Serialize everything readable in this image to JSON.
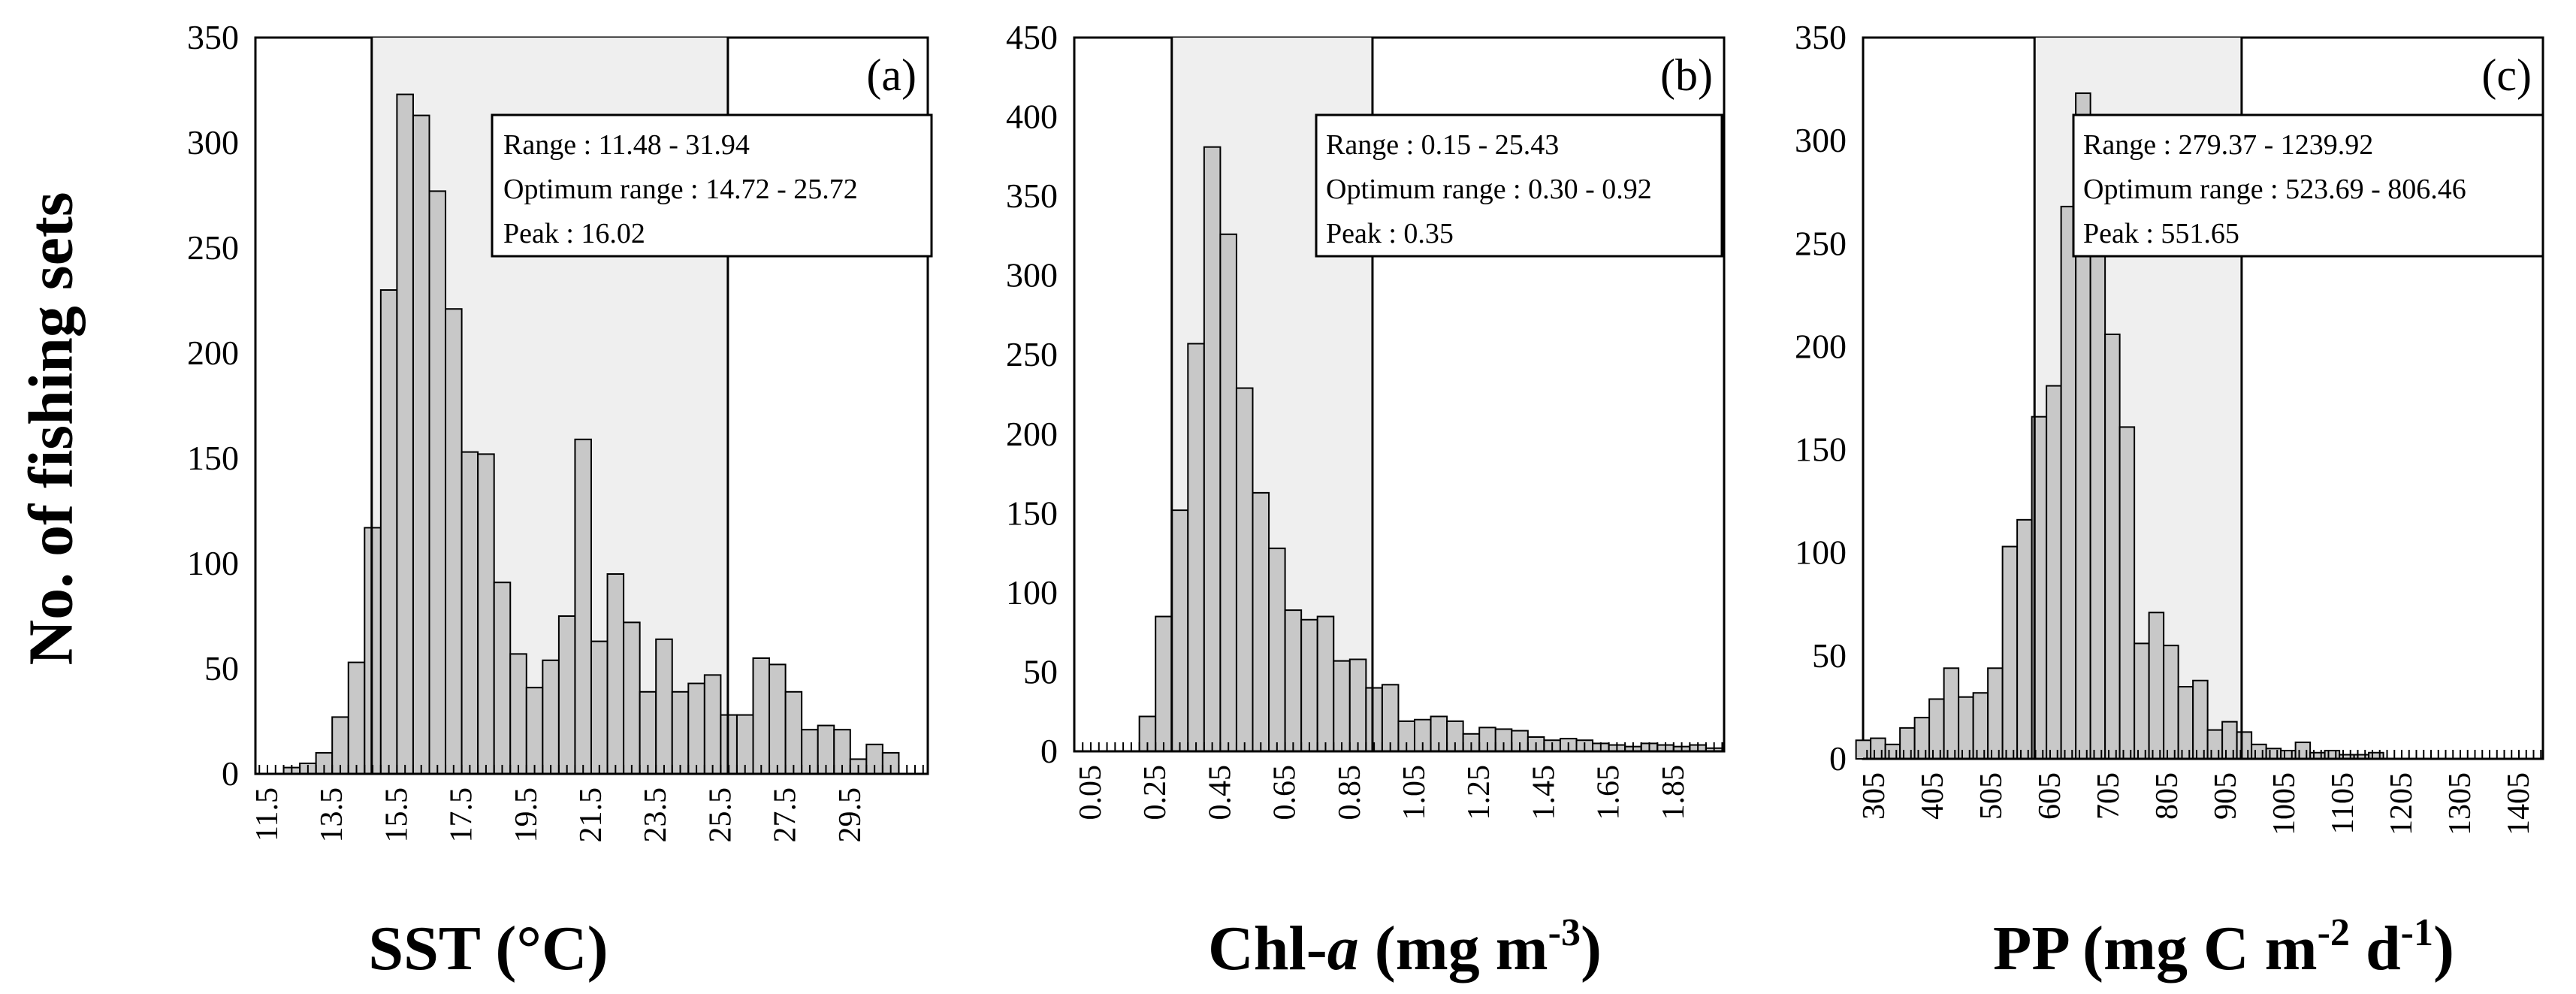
{
  "ylabel": "No. of fishing sets",
  "chart_data": [
    {
      "type": "bar",
      "panel_label": "(a)",
      "xlabel": "SST (°C)",
      "xticks": [
        "11.5",
        "13.5",
        "15.5",
        "17.5",
        "19.5",
        "21.5",
        "23.5",
        "25.5",
        "27.5",
        "29.5"
      ],
      "xstart": 11.0,
      "bin_width": 0.5,
      "ylim": [
        0,
        350
      ],
      "yticks": [
        0,
        50,
        100,
        150,
        200,
        250,
        300,
        350
      ],
      "values": [
        0,
        0,
        3,
        5,
        10,
        27,
        53,
        117,
        230,
        323,
        313,
        277,
        221,
        153,
        152,
        91,
        57,
        41,
        54,
        75,
        159,
        63,
        95,
        72,
        39,
        64,
        39,
        43,
        47,
        28,
        28,
        55,
        52,
        39,
        21,
        23,
        21,
        7,
        14,
        10
      ],
      "optimum_range": [
        14.72,
        25.72
      ],
      "info": {
        "range": "Range : 11.48 - 31.94",
        "optimum": "Optimum range : 14.72 - 25.72",
        "peak": "Peak : 16.02"
      }
    },
    {
      "type": "bar",
      "panel_label": "(b)",
      "xlabel_pre": "Chl-",
      "xlabel_italic": "a",
      "xlabel_post": " (mg m",
      "xlabel_sup": "-3",
      "xlabel_end": ")",
      "xticks": [
        "0.05",
        "0.25",
        "0.45",
        "0.65",
        "0.85",
        "1.05",
        "1.25",
        "1.45",
        "1.65",
        "1.85"
      ],
      "xstart": 0.0,
      "bin_width": 0.05,
      "ylim": [
        0,
        450
      ],
      "yticks": [
        0,
        50,
        100,
        150,
        200,
        250,
        300,
        350,
        400,
        450
      ],
      "values": [
        0,
        0,
        0,
        0,
        22,
        85,
        152,
        257,
        381,
        326,
        229,
        163,
        128,
        89,
        83,
        85,
        57,
        58,
        40,
        42,
        19,
        20,
        22,
        19,
        11,
        15,
        14,
        13,
        9,
        7,
        8,
        7,
        5,
        4,
        3,
        5,
        4,
        3,
        4,
        2
      ],
      "optimum_range": [
        0.3,
        0.92
      ],
      "info": {
        "range": "Range : 0.15 - 25.43",
        "optimum": "Optimum range : 0.30 - 0.92",
        "peak": "Peak : 0.35"
      }
    },
    {
      "type": "bar",
      "panel_label": "(c)",
      "xlabel_pre": "PP (mg C m",
      "xlabel_sup": "-2",
      "xlabel_mid": " d",
      "xlabel_sup2": "-1",
      "xlabel_end": ")",
      "xticks": [
        "305",
        "405",
        "505",
        "605",
        "705",
        "805",
        "905",
        "1005",
        "1105",
        "1205",
        "1305",
        "1405"
      ],
      "xstart": 280,
      "bin_width": 20,
      "ylim": [
        0,
        350
      ],
      "yticks": [
        0,
        50,
        100,
        150,
        200,
        250,
        300,
        350
      ],
      "values": [
        9,
        10,
        7,
        15,
        20,
        29,
        44,
        30,
        32,
        44,
        103,
        116,
        166,
        181,
        268,
        323,
        264,
        206,
        161,
        56,
        71,
        55,
        35,
        38,
        14,
        18,
        13,
        7,
        5,
        4,
        8,
        3,
        4,
        2,
        2,
        3
      ],
      "optimum_range": [
        523.69,
        806.46
      ],
      "info": {
        "range": "Range : 279.37 - 1239.92",
        "optimum": "Optimum range : 523.69 - 806.46",
        "peak": "Peak : 551.65"
      }
    }
  ]
}
